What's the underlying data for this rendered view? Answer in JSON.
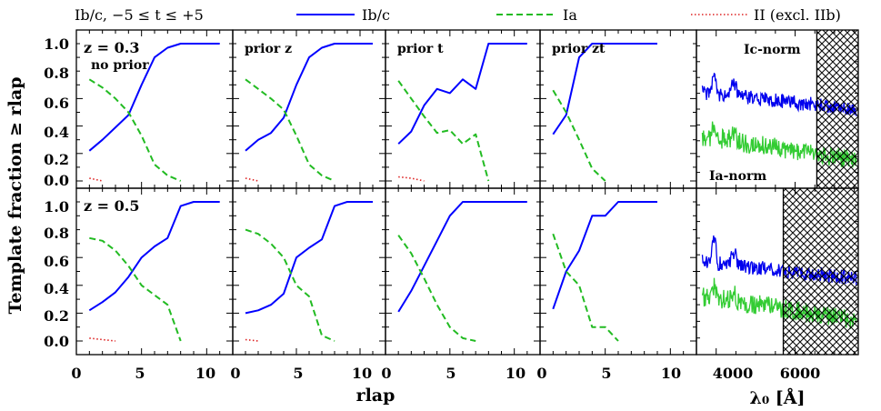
{
  "legend": {
    "heading": "Ib/c, −5 ≤ t ≤ +5",
    "entries": [
      {
        "label": "Ib/c",
        "color": "#0000ff",
        "style": "solid"
      },
      {
        "label": "Ia",
        "color": "#22bb22",
        "style": "dashed"
      },
      {
        "label": "II (excl. IIb)",
        "color": "#dd2222",
        "style": "dotted"
      }
    ]
  },
  "axes": {
    "ylabel": "Template fraction ≥ rlap",
    "xlabel": "rlap",
    "spectrum_xlabel": "λ₀ [Å]",
    "y_ticks": [
      "0.0",
      "0.2",
      "0.4",
      "0.6",
      "0.8",
      "1.0"
    ],
    "x_ticks": [
      "0",
      "5",
      "10"
    ],
    "spectrum_x_ticks": [
      "4000",
      "6000"
    ]
  },
  "chart_data": [
    {
      "type": "line",
      "row": 0,
      "col": 0,
      "labels": [
        "z = 0.3",
        "no prior"
      ],
      "xlim": [
        0,
        12
      ],
      "ylim": [
        0,
        1.05
      ],
      "series": [
        {
          "name": "Ib/c",
          "x": [
            1,
            2,
            3,
            4,
            5,
            6,
            7,
            8,
            9,
            10,
            11
          ],
          "y": [
            0.22,
            0.3,
            0.39,
            0.48,
            0.7,
            0.9,
            0.97,
            1.0,
            1.0,
            1.0,
            1.0
          ]
        },
        {
          "name": "Ia",
          "x": [
            1,
            2,
            3,
            4,
            5,
            6,
            7,
            8
          ],
          "y": [
            0.74,
            0.68,
            0.6,
            0.5,
            0.33,
            0.12,
            0.04,
            0.0
          ]
        },
        {
          "name": "II (excl. IIb)",
          "x": [
            1,
            2
          ],
          "y": [
            0.02,
            0.0
          ]
        }
      ]
    },
    {
      "type": "line",
      "row": 0,
      "col": 1,
      "labels": [
        "prior z"
      ],
      "xlim": [
        0,
        12
      ],
      "ylim": [
        0,
        1.05
      ],
      "series": [
        {
          "name": "Ib/c",
          "x": [
            1,
            2,
            3,
            4,
            5,
            6,
            7,
            8,
            9,
            10,
            11
          ],
          "y": [
            0.22,
            0.3,
            0.35,
            0.46,
            0.7,
            0.9,
            0.97,
            1.0,
            1.0,
            1.0,
            1.0
          ]
        },
        {
          "name": "Ia",
          "x": [
            1,
            2,
            3,
            4,
            5,
            6,
            7,
            8
          ],
          "y": [
            0.74,
            0.67,
            0.6,
            0.52,
            0.33,
            0.12,
            0.04,
            0.0
          ]
        },
        {
          "name": "II (excl. IIb)",
          "x": [
            1,
            2
          ],
          "y": [
            0.02,
            0.0
          ]
        }
      ]
    },
    {
      "type": "line",
      "row": 0,
      "col": 2,
      "labels": [
        "prior t"
      ],
      "xlim": [
        0,
        12
      ],
      "ylim": [
        0,
        1.05
      ],
      "series": [
        {
          "name": "Ib/c",
          "x": [
            1,
            2,
            3,
            4,
            5,
            6,
            7,
            8,
            9,
            10,
            11
          ],
          "y": [
            0.27,
            0.36,
            0.55,
            0.67,
            0.64,
            0.74,
            0.67,
            1.0,
            1.0,
            1.0,
            1.0
          ]
        },
        {
          "name": "Ia",
          "x": [
            1,
            2,
            3,
            4,
            5,
            6,
            7,
            8
          ],
          "y": [
            0.73,
            0.6,
            0.47,
            0.35,
            0.37,
            0.27,
            0.34,
            0.0
          ]
        },
        {
          "name": "II (excl. IIb)",
          "x": [
            1,
            2,
            3
          ],
          "y": [
            0.03,
            0.02,
            0.0
          ]
        }
      ]
    },
    {
      "type": "line",
      "row": 0,
      "col": 3,
      "labels": [
        "prior zt"
      ],
      "xlim": [
        0,
        12
      ],
      "ylim": [
        0,
        1.05
      ],
      "series": [
        {
          "name": "Ib/c",
          "x": [
            1,
            2,
            3,
            4,
            5,
            6,
            7,
            8,
            9
          ],
          "y": [
            0.34,
            0.48,
            0.9,
            1.0,
            1.0,
            1.0,
            1.0,
            1.0,
            1.0
          ]
        },
        {
          "name": "Ia",
          "x": [
            1,
            2,
            3,
            4,
            5
          ],
          "y": [
            0.66,
            0.5,
            0.3,
            0.09,
            0.0
          ]
        }
      ]
    },
    {
      "type": "line",
      "row": 1,
      "col": 0,
      "labels": [
        "z = 0.5"
      ],
      "xlim": [
        0,
        12
      ],
      "ylim": [
        0,
        1.05
      ],
      "series": [
        {
          "name": "Ib/c",
          "x": [
            1,
            2,
            3,
            4,
            5,
            6,
            7,
            8,
            9,
            10,
            11
          ],
          "y": [
            0.22,
            0.28,
            0.35,
            0.46,
            0.6,
            0.68,
            0.74,
            0.97,
            1.0,
            1.0,
            1.0
          ]
        },
        {
          "name": "Ia",
          "x": [
            1,
            2,
            3,
            4,
            5,
            6,
            7,
            8
          ],
          "y": [
            0.74,
            0.72,
            0.65,
            0.54,
            0.4,
            0.33,
            0.26,
            0.0
          ]
        },
        {
          "name": "II (excl. IIb)",
          "x": [
            1,
            2,
            3
          ],
          "y": [
            0.02,
            0.01,
            0.0
          ]
        }
      ]
    },
    {
      "type": "line",
      "row": 1,
      "col": 1,
      "labels": [],
      "xlim": [
        0,
        12
      ],
      "ylim": [
        0,
        1.05
      ],
      "series": [
        {
          "name": "Ib/c",
          "x": [
            1,
            2,
            3,
            4,
            5,
            6,
            7,
            8,
            9,
            10,
            11
          ],
          "y": [
            0.2,
            0.22,
            0.26,
            0.34,
            0.6,
            0.67,
            0.73,
            0.97,
            1.0,
            1.0,
            1.0
          ]
        },
        {
          "name": "Ia",
          "x": [
            1,
            2,
            3,
            4,
            5,
            6,
            7,
            8
          ],
          "y": [
            0.8,
            0.77,
            0.7,
            0.6,
            0.4,
            0.32,
            0.04,
            0.0
          ]
        },
        {
          "name": "II (excl. IIb)",
          "x": [
            1,
            2
          ],
          "y": [
            0.01,
            0.0
          ]
        }
      ]
    },
    {
      "type": "line",
      "row": 1,
      "col": 2,
      "labels": [],
      "xlim": [
        0,
        12
      ],
      "ylim": [
        0,
        1.05
      ],
      "series": [
        {
          "name": "Ib/c",
          "x": [
            1,
            2,
            3,
            4,
            5,
            6,
            7,
            8,
            9,
            10,
            11
          ],
          "y": [
            0.21,
            0.36,
            0.54,
            0.72,
            0.9,
            1.0,
            1.0,
            1.0,
            1.0,
            1.0,
            1.0
          ]
        },
        {
          "name": "Ia",
          "x": [
            1,
            2,
            3,
            4,
            5,
            6,
            7
          ],
          "y": [
            0.76,
            0.63,
            0.45,
            0.26,
            0.1,
            0.02,
            0.0
          ]
        }
      ]
    },
    {
      "type": "line",
      "row": 1,
      "col": 3,
      "labels": [],
      "xlim": [
        0,
        12
      ],
      "ylim": [
        0,
        1.05
      ],
      "series": [
        {
          "name": "Ib/c",
          "x": [
            1,
            2,
            3,
            4,
            5,
            6,
            7,
            8,
            9
          ],
          "y": [
            0.23,
            0.5,
            0.65,
            0.9,
            0.9,
            1.0,
            1.0,
            1.0,
            1.0
          ]
        },
        {
          "name": "Ia",
          "x": [
            1,
            2,
            3,
            4,
            5,
            6
          ],
          "y": [
            0.77,
            0.5,
            0.4,
            0.1,
            0.1,
            0.0
          ]
        }
      ]
    }
  ],
  "spectra": [
    {
      "row": 0,
      "labels": [
        "Ic-norm",
        "Ia-norm"
      ],
      "xlim": [
        3500,
        7600
      ],
      "cutoff": 6550
    },
    {
      "row": 1,
      "labels": [],
      "xlim": [
        3500,
        7600
      ],
      "cutoff": 5700
    }
  ]
}
